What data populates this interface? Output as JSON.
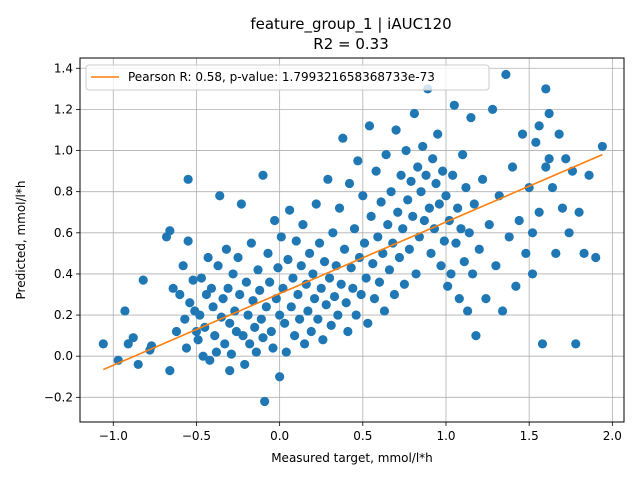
{
  "chart_data": {
    "type": "scatter",
    "title": "feature_group_1 | iAUC120",
    "subtitle": "R2 = 0.33",
    "xlabel": "Measured target, mmol/l*h",
    "ylabel": "Predicted, mmol/l*h",
    "xlim": [
      -1.2,
      2.07
    ],
    "ylim": [
      -0.32,
      1.45
    ],
    "xticks": [
      -1.0,
      -0.5,
      0.0,
      0.5,
      1.0,
      1.5,
      2.0
    ],
    "xtick_labels": [
      "−1.0",
      "−0.5",
      "0.0",
      "0.5",
      "1.0",
      "1.5",
      "2.0"
    ],
    "yticks": [
      -0.2,
      0.0,
      0.2,
      0.4,
      0.6,
      0.8,
      1.0,
      1.2,
      1.4
    ],
    "ytick_labels": [
      "−0.2",
      "0.0",
      "0.2",
      "0.4",
      "0.6",
      "0.8",
      "1.0",
      "1.2",
      "1.4"
    ],
    "grid": true,
    "legend_position": "top-left",
    "colors": {
      "points": "#1f77b4",
      "fit_line": "#ff7f0e",
      "grid": "#b0b0b0"
    },
    "fit_line": {
      "name": "Pearson R: 0.58, p-value: 1.799321658368733e-73",
      "x": [
        -1.06,
        1.94
      ],
      "y": [
        -0.065,
        0.98
      ]
    },
    "points": [
      [
        -1.06,
        0.06
      ],
      [
        -0.97,
        -0.02
      ],
      [
        -0.93,
        0.22
      ],
      [
        -0.91,
        0.06
      ],
      [
        -0.88,
        0.09
      ],
      [
        -0.85,
        -0.04
      ],
      [
        -0.82,
        0.37
      ],
      [
        -0.78,
        0.03
      ],
      [
        -0.77,
        0.05
      ],
      [
        -0.68,
        0.58
      ],
      [
        -0.66,
        -0.07
      ],
      [
        -0.66,
        0.61
      ],
      [
        -0.64,
        0.33
      ],
      [
        -0.62,
        0.12
      ],
      [
        -0.6,
        0.3
      ],
      [
        -0.58,
        0.44
      ],
      [
        -0.57,
        0.18
      ],
      [
        -0.56,
        0.04
      ],
      [
        -0.55,
        0.86
      ],
      [
        -0.55,
        0.56
      ],
      [
        -0.54,
        0.26
      ],
      [
        -0.52,
        0.37
      ],
      [
        -0.51,
        0.22
      ],
      [
        -0.5,
        0.12
      ],
      [
        -0.49,
        0.08
      ],
      [
        -0.48,
        0.2
      ],
      [
        -0.47,
        0.38
      ],
      [
        -0.46,
        0.0
      ],
      [
        -0.45,
        0.14
      ],
      [
        -0.44,
        0.3
      ],
      [
        -0.43,
        0.48
      ],
      [
        -0.42,
        -0.02
      ],
      [
        -0.41,
        0.33
      ],
      [
        -0.4,
        0.24
      ],
      [
        -0.39,
        0.1
      ],
      [
        -0.38,
        0.02
      ],
      [
        -0.37,
        0.44
      ],
      [
        -0.36,
        0.78
      ],
      [
        -0.35,
        0.19
      ],
      [
        -0.34,
        0.28
      ],
      [
        -0.33,
        0.06
      ],
      [
        -0.32,
        0.52
      ],
      [
        -0.31,
        0.33
      ],
      [
        -0.3,
        0.16
      ],
      [
        -0.3,
        -0.07
      ],
      [
        -0.29,
        0.01
      ],
      [
        -0.28,
        0.4
      ],
      [
        -0.27,
        0.22
      ],
      [
        -0.26,
        0.12
      ],
      [
        -0.25,
        0.48
      ],
      [
        -0.24,
        0.3
      ],
      [
        -0.23,
        0.74
      ],
      [
        -0.22,
        0.1
      ],
      [
        -0.21,
        -0.04
      ],
      [
        -0.2,
        0.36
      ],
      [
        -0.19,
        0.2
      ],
      [
        -0.18,
        0.06
      ],
      [
        -0.17,
        0.55
      ],
      [
        -0.16,
        0.27
      ],
      [
        -0.15,
        0.14
      ],
      [
        -0.14,
        0.02
      ],
      [
        -0.13,
        0.42
      ],
      [
        -0.12,
        0.32
      ],
      [
        -0.11,
        0.18
      ],
      [
        -0.1,
        0.88
      ],
      [
        -0.1,
        0.09
      ],
      [
        -0.09,
        -0.22
      ],
      [
        -0.08,
        0.24
      ],
      [
        -0.07,
        0.5
      ],
      [
        -0.06,
        0.36
      ],
      [
        -0.05,
        0.12
      ],
      [
        -0.04,
        0.04
      ],
      [
        -0.03,
        0.66
      ],
      [
        -0.02,
        0.28
      ],
      [
        -0.01,
        0.43
      ],
      [
        0.0,
        0.2
      ],
      [
        0.0,
        -0.1
      ],
      [
        0.01,
        0.58
      ],
      [
        0.02,
        0.33
      ],
      [
        0.03,
        0.16
      ],
      [
        0.04,
        0.02
      ],
      [
        0.05,
        0.47
      ],
      [
        0.06,
        0.71
      ],
      [
        0.07,
        0.24
      ],
      [
        0.08,
        0.38
      ],
      [
        0.09,
        0.1
      ],
      [
        0.1,
        0.56
      ],
      [
        0.11,
        0.3
      ],
      [
        0.12,
        0.18
      ],
      [
        0.13,
        0.44
      ],
      [
        0.14,
        0.64
      ],
      [
        0.15,
        0.06
      ],
      [
        0.16,
        0.35
      ],
      [
        0.17,
        0.22
      ],
      [
        0.18,
        0.5
      ],
      [
        0.19,
        0.12
      ],
      [
        0.2,
        0.4
      ],
      [
        0.21,
        0.28
      ],
      [
        0.22,
        0.74
      ],
      [
        0.23,
        0.18
      ],
      [
        0.24,
        0.55
      ],
      [
        0.25,
        0.33
      ],
      [
        0.26,
        0.08
      ],
      [
        0.27,
        0.46
      ],
      [
        0.28,
        0.25
      ],
      [
        0.29,
        0.86
      ],
      [
        0.3,
        0.38
      ],
      [
        0.31,
        0.15
      ],
      [
        0.32,
        0.6
      ],
      [
        0.33,
        0.29
      ],
      [
        0.34,
        0.44
      ],
      [
        0.35,
        0.2
      ],
      [
        0.36,
        0.72
      ],
      [
        0.37,
        0.35
      ],
      [
        0.38,
        1.06
      ],
      [
        0.39,
        0.52
      ],
      [
        0.4,
        0.26
      ],
      [
        0.41,
        0.12
      ],
      [
        0.42,
        0.84
      ],
      [
        0.43,
        0.43
      ],
      [
        0.44,
        0.33
      ],
      [
        0.45,
        0.62
      ],
      [
        0.46,
        0.2
      ],
      [
        0.47,
        0.95
      ],
      [
        0.48,
        0.48
      ],
      [
        0.49,
        0.3
      ],
      [
        0.5,
        0.78
      ],
      [
        0.51,
        0.55
      ],
      [
        0.52,
        0.38
      ],
      [
        0.53,
        0.16
      ],
      [
        0.54,
        1.12
      ],
      [
        0.55,
        0.68
      ],
      [
        0.56,
        0.45
      ],
      [
        0.57,
        0.28
      ],
      [
        0.58,
        0.9
      ],
      [
        0.59,
        0.58
      ],
      [
        0.6,
        0.36
      ],
      [
        0.61,
        0.75
      ],
      [
        0.62,
        0.5
      ],
      [
        0.63,
        0.22
      ],
      [
        0.64,
        0.98
      ],
      [
        0.65,
        0.64
      ],
      [
        0.66,
        0.42
      ],
      [
        0.67,
        0.8
      ],
      [
        0.68,
        0.55
      ],
      [
        0.69,
        0.3
      ],
      [
        0.7,
        1.1
      ],
      [
        0.71,
        0.7
      ],
      [
        0.72,
        0.48
      ],
      [
        0.73,
        0.88
      ],
      [
        0.74,
        0.62
      ],
      [
        0.75,
        0.35
      ],
      [
        0.76,
        1.0
      ],
      [
        0.77,
        0.76
      ],
      [
        0.78,
        0.52
      ],
      [
        0.79,
        0.85
      ],
      [
        0.8,
        0.68
      ],
      [
        0.81,
        1.18
      ],
      [
        0.82,
        0.4
      ],
      [
        0.83,
        0.92
      ],
      [
        0.84,
        0.58
      ],
      [
        0.85,
        0.8
      ],
      [
        0.86,
        1.02
      ],
      [
        0.87,
        0.66
      ],
      [
        0.88,
        0.88
      ],
      [
        0.89,
        1.3
      ],
      [
        0.9,
        0.72
      ],
      [
        0.91,
        0.5
      ],
      [
        0.92,
        0.96
      ],
      [
        0.93,
        0.62
      ],
      [
        0.94,
        0.84
      ],
      [
        0.95,
        1.08
      ],
      [
        0.96,
        0.74
      ],
      [
        0.97,
        0.44
      ],
      [
        0.98,
        0.9
      ],
      [
        0.99,
        0.56
      ],
      [
        1.0,
        0.78
      ],
      [
        1.01,
        0.34
      ],
      [
        1.02,
        0.66
      ],
      [
        1.03,
        0.4
      ],
      [
        1.04,
        0.88
      ],
      [
        1.05,
        1.22
      ],
      [
        1.06,
        0.55
      ],
      [
        1.07,
        0.72
      ],
      [
        1.08,
        0.28
      ],
      [
        1.09,
        0.62
      ],
      [
        1.1,
        0.98
      ],
      [
        1.11,
        0.46
      ],
      [
        1.12,
        0.82
      ],
      [
        1.13,
        0.22
      ],
      [
        1.14,
        0.6
      ],
      [
        1.15,
        1.16
      ],
      [
        1.16,
        0.4
      ],
      [
        1.17,
        0.74
      ],
      [
        1.18,
        0.1
      ],
      [
        1.2,
        0.52
      ],
      [
        1.22,
        0.86
      ],
      [
        1.24,
        0.28
      ],
      [
        1.26,
        0.64
      ],
      [
        1.28,
        1.2
      ],
      [
        1.3,
        0.44
      ],
      [
        1.32,
        0.78
      ],
      [
        1.34,
        0.22
      ],
      [
        1.36,
        1.37
      ],
      [
        1.38,
        0.58
      ],
      [
        1.4,
        0.92
      ],
      [
        1.42,
        0.34
      ],
      [
        1.44,
        0.66
      ],
      [
        1.46,
        1.08
      ],
      [
        1.48,
        0.5
      ],
      [
        1.5,
        0.82
      ],
      [
        1.52,
        0.4
      ],
      [
        1.54,
        1.04
      ],
      [
        1.56,
        0.7
      ],
      [
        1.58,
        0.06
      ],
      [
        1.6,
        0.92
      ],
      [
        1.62,
        1.18
      ],
      [
        1.64,
        0.82
      ],
      [
        1.66,
        0.5
      ],
      [
        1.68,
        1.08
      ],
      [
        1.7,
        0.72
      ],
      [
        1.72,
        0.96
      ],
      [
        1.74,
        0.6
      ],
      [
        1.76,
        0.9
      ],
      [
        1.78,
        0.06
      ],
      [
        1.8,
        0.7
      ],
      [
        1.83,
        0.5
      ],
      [
        1.86,
        0.88
      ],
      [
        1.9,
        0.48
      ],
      [
        1.94,
        1.02
      ],
      [
        1.6,
        1.3
      ],
      [
        1.62,
        0.96
      ],
      [
        1.56,
        1.12
      ],
      [
        1.52,
        0.6
      ]
    ]
  }
}
